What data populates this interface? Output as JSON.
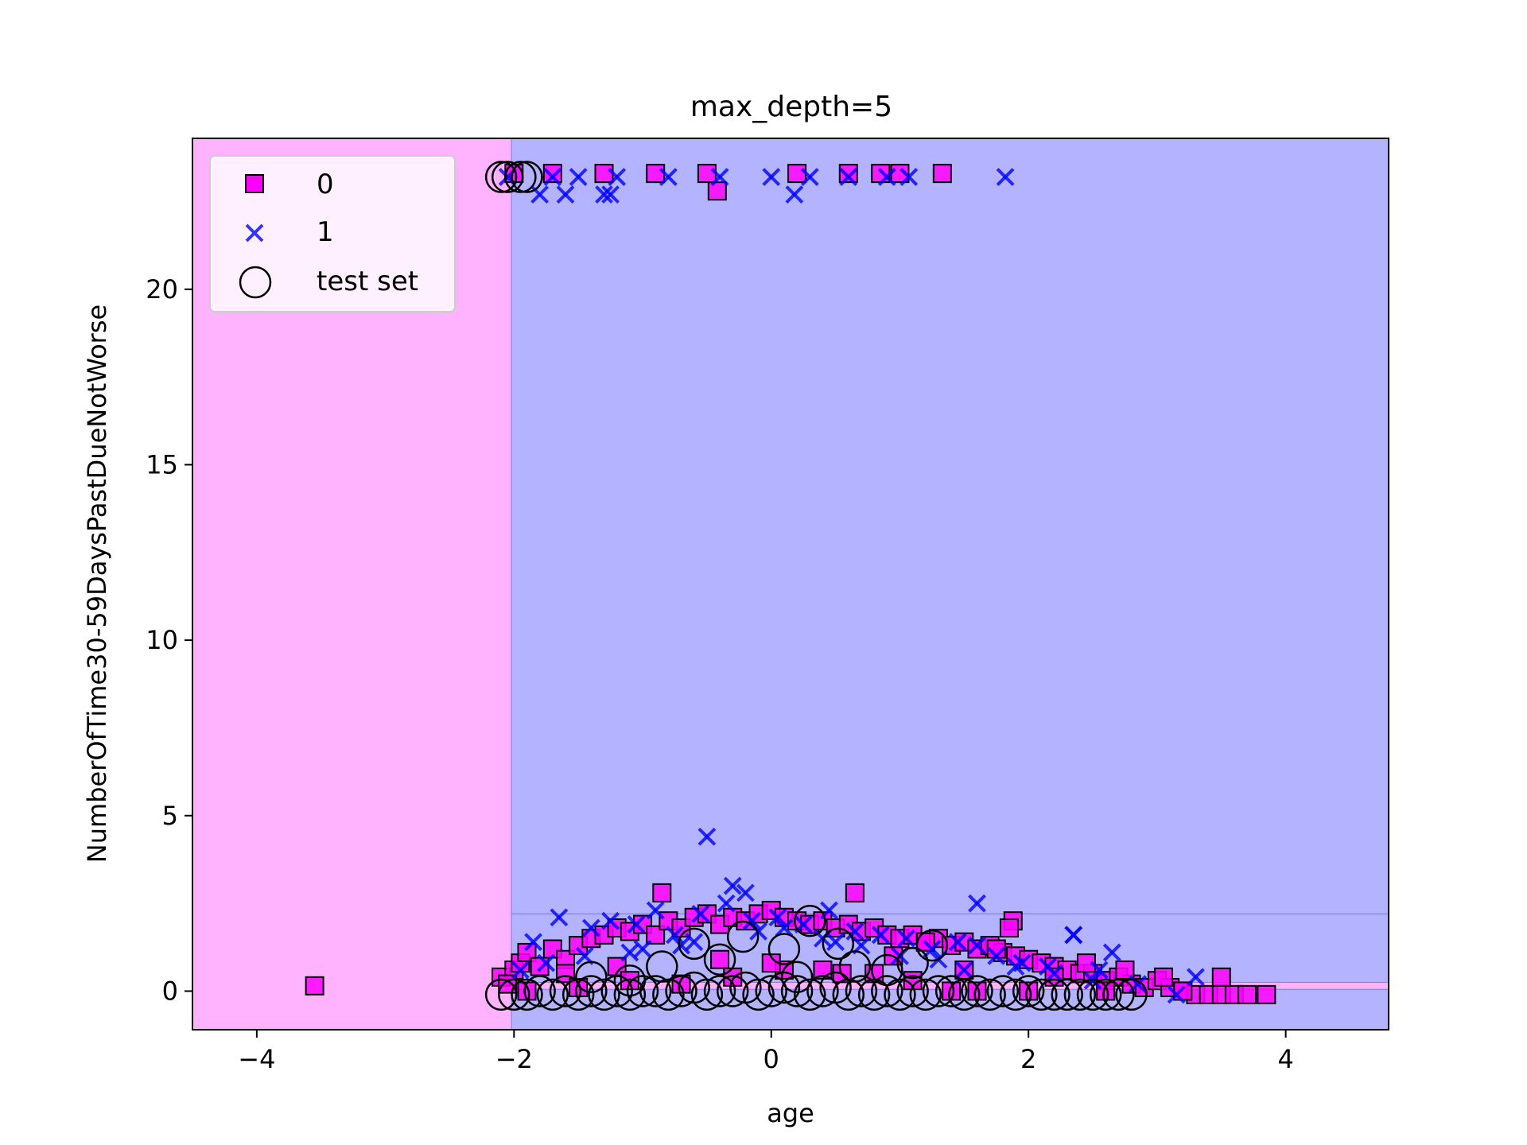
{
  "chart_data": {
    "type": "scatter",
    "title": "max_depth=5",
    "xlabel": "age",
    "ylabel": "NumberOfTime30-59DaysPastDueNotWorse",
    "xlim": [
      -4.5,
      4.8
    ],
    "ylim": [
      -1.1,
      24.3
    ],
    "xticks": [
      -4,
      -2,
      0,
      2,
      4
    ],
    "xtick_labels": [
      "−4",
      "−2",
      "0",
      "2",
      "4"
    ],
    "yticks": [
      0,
      5,
      10,
      15,
      20
    ],
    "ytick_labels": [
      "0",
      "5",
      "10",
      "15",
      "20"
    ],
    "grid": false,
    "legend": {
      "placement": "upper-left",
      "entries": [
        {
          "label": "0",
          "marker": "square"
        },
        {
          "label": "1",
          "marker": "x"
        },
        {
          "label": "test set",
          "marker": "circle"
        }
      ]
    },
    "colors": {
      "class_0": "#ff00ff",
      "class_1": "#0000ff",
      "region_0": "#ffb3ff",
      "region_1": "#b3b3ff",
      "test_edge": "#000000"
    },
    "decision_regions": [
      {
        "class": 0,
        "x": [
          -4.5,
          -2.02
        ],
        "y": [
          -1.1,
          24.3
        ]
      },
      {
        "class": 1,
        "x": [
          -2.02,
          4.8
        ],
        "y": [
          2.2,
          24.3
        ]
      },
      {
        "class": 1,
        "x": [
          -2.02,
          4.8
        ],
        "y": [
          0.25,
          2.2
        ]
      },
      {
        "class": 1,
        "x": [
          -2.02,
          4.8
        ],
        "y": [
          -1.1,
          0.05
        ]
      }
    ],
    "series": [
      {
        "name": "0",
        "marker": "square",
        "x": [
          -3.55,
          -2.1,
          -2.0,
          -1.95,
          -1.9,
          -1.8,
          -1.7,
          -1.6,
          -1.5,
          -1.4,
          -1.3,
          -1.2,
          -1.1,
          -1.0,
          -0.9,
          -0.8,
          -0.7,
          -0.6,
          -0.5,
          -0.4,
          -0.3,
          -0.2,
          -0.1,
          0.0,
          0.1,
          0.2,
          0.3,
          0.4,
          0.5,
          0.6,
          0.7,
          0.8,
          0.9,
          1.0,
          1.1,
          1.2,
          1.3,
          1.4,
          1.5,
          1.6,
          1.7,
          1.8,
          1.9,
          2.0,
          2.1,
          2.2,
          2.3,
          2.4,
          2.5,
          2.6,
          2.7,
          2.8,
          2.9,
          3.0,
          3.1,
          3.2,
          3.3,
          3.4,
          3.5,
          3.6,
          3.7,
          3.85,
          -0.85,
          0.65,
          -0.42,
          1.33,
          1.88,
          1.85,
          3.5,
          3.05,
          2.75,
          2.45,
          1.2,
          0.95,
          0.55,
          0.1,
          -0.4,
          -1.2,
          -1.6,
          -2.05,
          -1.9,
          -1.5,
          -1.1,
          -0.7,
          -0.3,
          0.0,
          0.4,
          0.8,
          1.1,
          1.5,
          2.2,
          -2.0,
          -1.7,
          -1.3,
          -0.9,
          -0.5,
          0.2,
          0.6,
          1.0,
          1.4,
          1.6,
          2.0,
          2.6,
          3.2,
          0.85,
          1.75
        ],
        "y": [
          0.15,
          0.4,
          0.6,
          0.8,
          1.1,
          0.7,
          1.2,
          0.9,
          1.3,
          1.5,
          1.6,
          1.8,
          1.7,
          1.9,
          1.6,
          2.0,
          1.8,
          2.1,
          2.2,
          1.9,
          2.1,
          2.0,
          2.2,
          2.3,
          2.1,
          2.0,
          1.9,
          2.0,
          1.8,
          1.9,
          1.7,
          1.8,
          1.6,
          1.5,
          1.6,
          1.4,
          1.5,
          1.3,
          1.4,
          1.2,
          1.3,
          1.1,
          1.0,
          0.9,
          0.8,
          0.7,
          0.6,
          0.5,
          0.5,
          0.3,
          0.4,
          0.2,
          0.1,
          0.3,
          0.1,
          0.0,
          -0.1,
          -0.1,
          -0.1,
          -0.1,
          -0.1,
          -0.1,
          2.8,
          2.8,
          22.8,
          23.3,
          2.0,
          1.8,
          0.4,
          0.4,
          0.6,
          0.8,
          1.4,
          1.0,
          0.5,
          0.6,
          0.9,
          0.7,
          0.5,
          0.2,
          0.0,
          0.1,
          0.3,
          0.2,
          0.4,
          0.8,
          0.6,
          0.5,
          0.3,
          0.6,
          0.4,
          23.3,
          23.3,
          23.3,
          23.3,
          23.3,
          23.3,
          23.3,
          23.3,
          0.0,
          0.0,
          0.0,
          0.0,
          0.0,
          23.3,
          1.2
        ]
      },
      {
        "name": "1",
        "marker": "x",
        "x": [
          -1.85,
          -1.65,
          -1.4,
          -1.25,
          -1.05,
          -0.9,
          -0.75,
          -0.55,
          -0.35,
          -0.15,
          0.05,
          0.25,
          0.45,
          0.65,
          0.85,
          1.05,
          1.25,
          1.45,
          1.6,
          1.75,
          1.95,
          2.15,
          2.35,
          2.55,
          2.65,
          2.85,
          3.15,
          3.3,
          -0.5,
          -0.3,
          -0.2,
          1.6,
          2.35,
          -1.8,
          -1.6,
          -1.3,
          -1.25,
          0.18,
          1.07,
          1.82,
          -2.05,
          -1.7,
          -1.5,
          -1.2,
          -0.8,
          -0.4,
          0.0,
          0.3,
          0.6,
          0.9,
          -1.95,
          -1.75,
          -1.45,
          -1.0,
          -0.6,
          -0.1,
          0.4,
          0.7,
          1.3,
          1.9,
          2.2,
          2.5,
          -1.1,
          -0.7,
          0.1,
          0.5,
          1.0,
          1.5
        ],
        "y": [
          1.4,
          2.1,
          1.8,
          2.0,
          1.9,
          2.3,
          1.6,
          2.2,
          2.5,
          2.0,
          2.1,
          1.9,
          2.3,
          1.7,
          1.6,
          1.5,
          1.2,
          1.4,
          1.3,
          1.0,
          0.8,
          0.7,
          1.6,
          0.6,
          1.1,
          0.2,
          -0.1,
          0.4,
          4.4,
          3.0,
          2.8,
          2.5,
          1.6,
          22.7,
          22.7,
          22.7,
          22.7,
          22.7,
          23.2,
          23.2,
          23.2,
          23.2,
          23.2,
          23.2,
          23.2,
          23.2,
          23.2,
          23.2,
          23.2,
          23.2,
          0.6,
          0.8,
          1.0,
          1.2,
          1.4,
          1.7,
          1.5,
          1.3,
          0.9,
          0.7,
          0.5,
          0.3,
          1.1,
          1.3,
          1.8,
          1.4,
          1.0,
          0.6
        ]
      },
      {
        "name": "test set",
        "marker": "circle",
        "x": [
          -2.1,
          -2.05,
          -1.95,
          -1.9,
          -2.1,
          -2.0,
          -1.9,
          -1.8,
          -1.7,
          -1.6,
          -1.5,
          -1.4,
          -1.3,
          -1.2,
          -1.1,
          -1.0,
          -0.9,
          -0.8,
          -0.7,
          -0.6,
          -0.5,
          -0.4,
          -0.3,
          -0.2,
          -0.1,
          0.0,
          0.1,
          0.2,
          0.3,
          0.4,
          0.5,
          0.6,
          0.7,
          0.8,
          0.9,
          1.0,
          1.1,
          1.2,
          1.3,
          1.4,
          1.5,
          1.6,
          1.7,
          1.8,
          1.9,
          2.0,
          2.1,
          2.2,
          2.3,
          2.4,
          2.5,
          2.6,
          2.7,
          2.8,
          0.3,
          0.1,
          0.52,
          -0.6,
          -0.22,
          1.25,
          -0.85,
          0.65,
          -1.4,
          -0.4,
          0.9,
          1.1,
          -1.1,
          0.2
        ],
        "y": [
          23.2,
          23.2,
          23.2,
          23.2,
          -0.1,
          -0.1,
          -0.1,
          0.0,
          -0.1,
          0.0,
          -0.1,
          0.0,
          -0.1,
          0.0,
          -0.1,
          0.0,
          0.0,
          -0.1,
          0.0,
          0.1,
          -0.1,
          0.0,
          0.0,
          0.1,
          -0.1,
          0.0,
          0.1,
          0.0,
          -0.1,
          0.0,
          0.1,
          -0.1,
          0.0,
          -0.1,
          0.0,
          -0.1,
          0.0,
          -0.1,
          0.0,
          0.0,
          -0.1,
          0.0,
          -0.1,
          0.0,
          -0.1,
          0.0,
          -0.1,
          -0.1,
          -0.1,
          -0.1,
          -0.1,
          -0.1,
          -0.1,
          -0.1,
          2.0,
          1.2,
          1.35,
          1.35,
          1.55,
          1.3,
          0.7,
          0.7,
          0.4,
          0.9,
          0.6,
          0.8,
          0.3,
          0.4
        ]
      }
    ]
  }
}
